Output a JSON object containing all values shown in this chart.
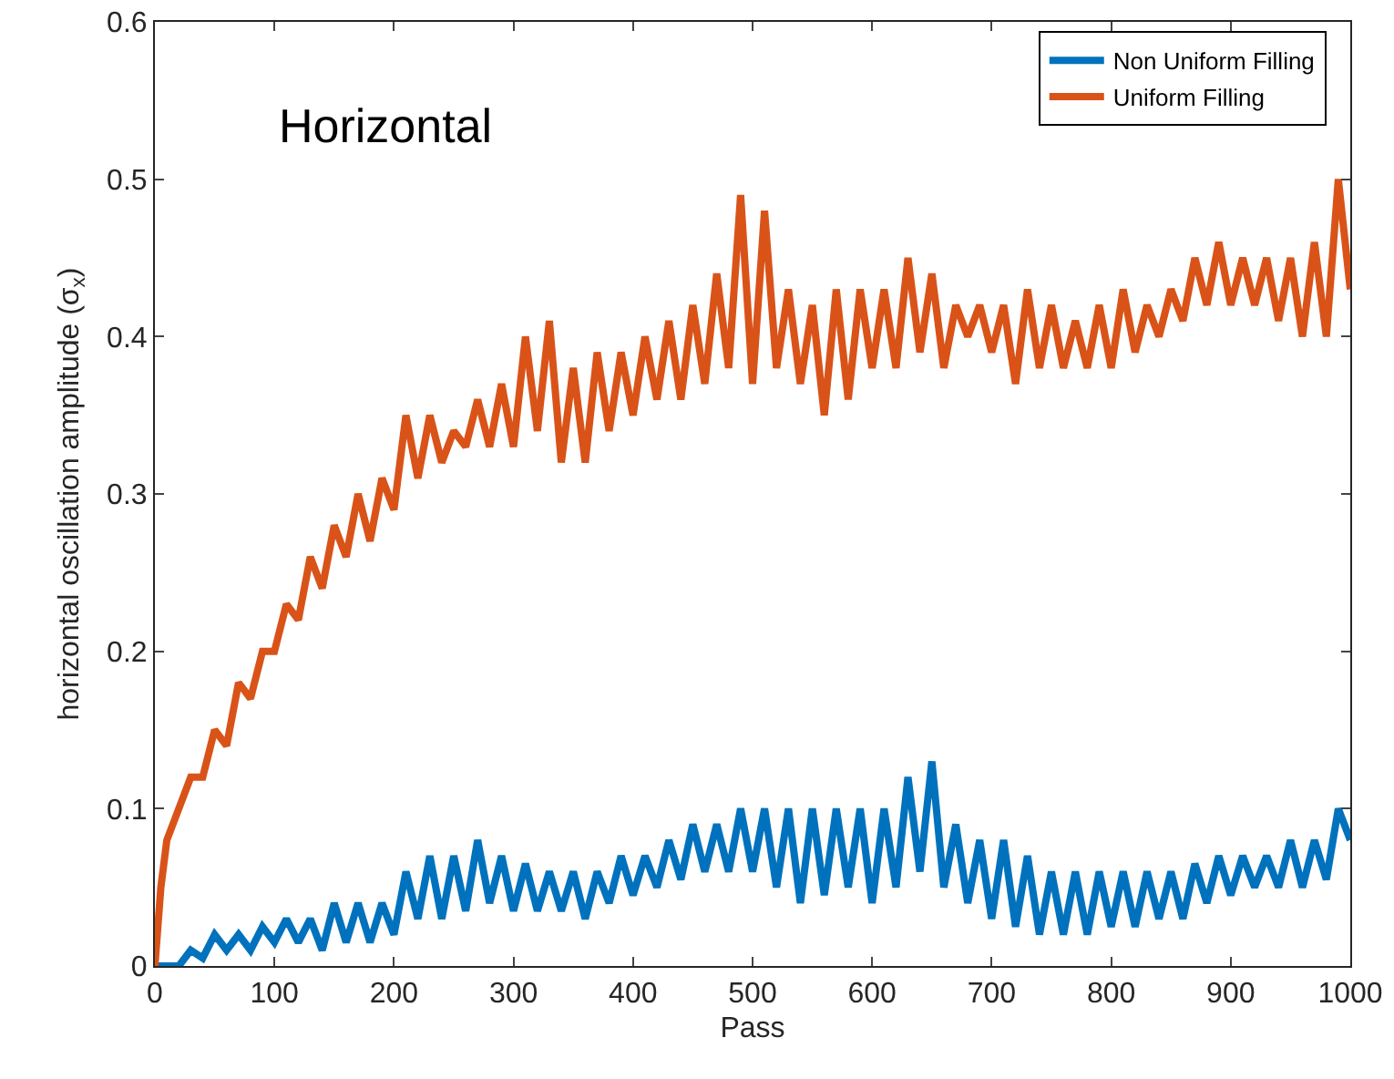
{
  "chart_data": {
    "type": "line",
    "xlabel": "Pass",
    "ylabel": "horizontal oscillation amplitude (σ$_{x}$)",
    "annotations": [
      "Horizontal"
    ],
    "xlim": [
      0,
      1000
    ],
    "xticks": [
      0,
      100,
      200,
      300,
      400,
      500,
      600,
      700,
      800,
      900,
      1000
    ],
    "ylim": [
      0,
      0.6
    ],
    "yticks": [
      0,
      0.1,
      0.2,
      0.3,
      0.4,
      0.5,
      0.6
    ],
    "grid": false,
    "legend": "top right",
    "line_style": "solid",
    "marker": "none",
    "series": [
      {
        "name": "Non Uniform Filling",
        "color": "#0072bd",
        "x": [
          0,
          20,
          30,
          40,
          50,
          60,
          70,
          80,
          90,
          100,
          110,
          120,
          130,
          140,
          150,
          160,
          170,
          180,
          190,
          200,
          210,
          220,
          230,
          240,
          250,
          260,
          270,
          280,
          290,
          300,
          310,
          320,
          330,
          340,
          350,
          360,
          370,
          380,
          390,
          400,
          410,
          420,
          430,
          440,
          450,
          460,
          470,
          480,
          490,
          500,
          510,
          520,
          530,
          540,
          550,
          560,
          570,
          580,
          590,
          600,
          610,
          620,
          630,
          640,
          650,
          660,
          670,
          680,
          690,
          700,
          710,
          720,
          730,
          740,
          750,
          760,
          770,
          780,
          790,
          800,
          810,
          820,
          830,
          840,
          850,
          860,
          870,
          880,
          890,
          900,
          910,
          920,
          930,
          940,
          950,
          960,
          970,
          980,
          990,
          1000
        ],
        "values": [
          0,
          0,
          0.01,
          0.005,
          0.02,
          0.01,
          0.02,
          0.01,
          0.025,
          0.015,
          0.03,
          0.015,
          0.03,
          0.01,
          0.04,
          0.015,
          0.04,
          0.015,
          0.04,
          0.02,
          0.06,
          0.03,
          0.07,
          0.03,
          0.07,
          0.035,
          0.08,
          0.04,
          0.07,
          0.035,
          0.065,
          0.035,
          0.06,
          0.035,
          0.06,
          0.03,
          0.06,
          0.04,
          0.07,
          0.045,
          0.07,
          0.05,
          0.08,
          0.055,
          0.09,
          0.06,
          0.09,
          0.06,
          0.1,
          0.06,
          0.1,
          0.05,
          0.1,
          0.04,
          0.1,
          0.045,
          0.1,
          0.05,
          0.1,
          0.04,
          0.1,
          0.05,
          0.12,
          0.06,
          0.13,
          0.05,
          0.09,
          0.04,
          0.08,
          0.03,
          0.08,
          0.025,
          0.07,
          0.02,
          0.06,
          0.02,
          0.06,
          0.02,
          0.06,
          0.025,
          0.06,
          0.025,
          0.06,
          0.03,
          0.06,
          0.03,
          0.065,
          0.04,
          0.07,
          0.045,
          0.07,
          0.05,
          0.07,
          0.05,
          0.08,
          0.05,
          0.08,
          0.055,
          0.1,
          0.08
        ]
      },
      {
        "name": "Uniform Filling",
        "color": "#d95319",
        "x": [
          0,
          5,
          10,
          20,
          30,
          40,
          50,
          60,
          70,
          80,
          90,
          100,
          110,
          120,
          130,
          140,
          150,
          160,
          170,
          180,
          190,
          200,
          210,
          220,
          230,
          240,
          250,
          260,
          270,
          280,
          290,
          300,
          310,
          320,
          330,
          340,
          350,
          360,
          370,
          380,
          390,
          400,
          410,
          420,
          430,
          440,
          450,
          460,
          470,
          480,
          490,
          500,
          510,
          520,
          530,
          540,
          550,
          560,
          570,
          580,
          590,
          600,
          610,
          620,
          630,
          640,
          650,
          660,
          670,
          680,
          690,
          700,
          710,
          720,
          730,
          740,
          750,
          760,
          770,
          780,
          790,
          800,
          810,
          820,
          830,
          840,
          850,
          860,
          870,
          880,
          890,
          900,
          910,
          920,
          930,
          940,
          950,
          960,
          970,
          980,
          990,
          1000
        ],
        "values": [
          0,
          0.05,
          0.08,
          0.1,
          0.12,
          0.12,
          0.15,
          0.14,
          0.18,
          0.17,
          0.2,
          0.2,
          0.23,
          0.22,
          0.26,
          0.24,
          0.28,
          0.26,
          0.3,
          0.27,
          0.31,
          0.29,
          0.35,
          0.31,
          0.35,
          0.32,
          0.34,
          0.33,
          0.36,
          0.33,
          0.37,
          0.33,
          0.4,
          0.34,
          0.41,
          0.32,
          0.38,
          0.32,
          0.39,
          0.34,
          0.39,
          0.35,
          0.4,
          0.36,
          0.41,
          0.36,
          0.42,
          0.37,
          0.44,
          0.38,
          0.49,
          0.37,
          0.48,
          0.38,
          0.43,
          0.37,
          0.42,
          0.35,
          0.43,
          0.36,
          0.43,
          0.38,
          0.43,
          0.38,
          0.45,
          0.39,
          0.44,
          0.38,
          0.42,
          0.4,
          0.42,
          0.39,
          0.42,
          0.37,
          0.43,
          0.38,
          0.42,
          0.38,
          0.41,
          0.38,
          0.42,
          0.38,
          0.43,
          0.39,
          0.42,
          0.4,
          0.43,
          0.41,
          0.45,
          0.42,
          0.46,
          0.42,
          0.45,
          0.42,
          0.45,
          0.41,
          0.45,
          0.4,
          0.46,
          0.4,
          0.5,
          0.43
        ]
      }
    ]
  }
}
